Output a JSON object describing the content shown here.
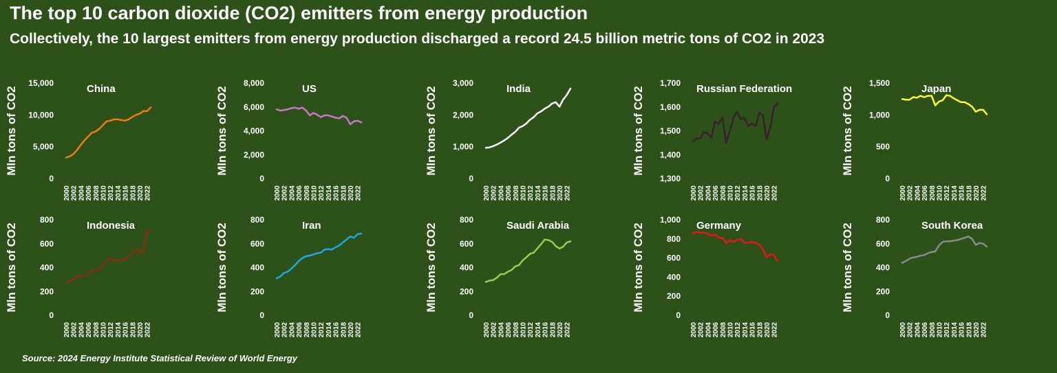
{
  "title": "The top 10 carbon dioxide (CO2) emitters from energy production",
  "subtitle": "Collectively, the 10 largest emitters from energy production discharged a record 24.5 billion metric tons of CO2 in 2023",
  "source": "Source: 2024 Energy Institute Statistical Review of World Energy",
  "chart_data": [
    {
      "type": "line",
      "title": "China",
      "color": "#f07b12",
      "ylabel": "Mln tons of CO2",
      "ylim": [
        0,
        15000
      ],
      "yticks": [
        "0",
        "5,000",
        "10,000",
        "15,000"
      ],
      "ytick_values": [
        0,
        5000,
        10000,
        15000
      ],
      "xticks": [
        "2000",
        "2002",
        "2004",
        "2006",
        "2008",
        "2010",
        "2012",
        "2014",
        "2016",
        "2018",
        "2020",
        "2022"
      ],
      "x": [
        2000,
        2001,
        2002,
        2003,
        2004,
        2005,
        2006,
        2007,
        2008,
        2009,
        2010,
        2011,
        2012,
        2013,
        2014,
        2015,
        2016,
        2017,
        2018,
        2019,
        2020,
        2021,
        2022,
        2023
      ],
      "values": [
        3300,
        3500,
        3850,
        4500,
        5300,
        6000,
        6600,
        7200,
        7400,
        7800,
        8400,
        9000,
        9100,
        9300,
        9300,
        9200,
        9100,
        9300,
        9700,
        10000,
        10200,
        10600,
        10600,
        11200
      ]
    },
    {
      "type": "line",
      "title": "US",
      "color": "#d074cc",
      "ylabel": "Mln tons of CO2",
      "ylim": [
        0,
        8000
      ],
      "yticks": [
        "0",
        "2,000",
        "4,000",
        "6,000",
        "8,000"
      ],
      "ytick_values": [
        0,
        2000,
        4000,
        6000,
        8000
      ],
      "xticks": [
        "2000",
        "2002",
        "2004",
        "2006",
        "2008",
        "2010",
        "2012",
        "2014",
        "2016",
        "2018",
        "2020",
        "2022"
      ],
      "x": [
        2000,
        2001,
        2002,
        2003,
        2004,
        2005,
        2006,
        2007,
        2008,
        2009,
        2010,
        2011,
        2012,
        2013,
        2014,
        2015,
        2016,
        2017,
        2018,
        2019,
        2020,
        2021,
        2022,
        2023
      ],
      "values": [
        5800,
        5700,
        5750,
        5800,
        5900,
        5950,
        5850,
        5950,
        5700,
        5300,
        5500,
        5350,
        5150,
        5300,
        5300,
        5200,
        5100,
        5050,
        5250,
        5100,
        4550,
        4800,
        4850,
        4700
      ]
    },
    {
      "type": "line",
      "title": "India",
      "color": "#ffffff",
      "ylabel": "Mln tons of CO2",
      "ylim": [
        0,
        3000
      ],
      "yticks": [
        "0",
        "1,000",
        "2,000",
        "3,000"
      ],
      "ytick_values": [
        0,
        1000,
        2000,
        3000
      ],
      "xticks": [
        "2000",
        "2002",
        "2004",
        "2006",
        "2008",
        "2010",
        "2012",
        "2014",
        "2016",
        "2018",
        "2020",
        "2022"
      ],
      "x": [
        2000,
        2001,
        2002,
        2003,
        2004,
        2005,
        2006,
        2007,
        2008,
        2009,
        2010,
        2011,
        2012,
        2013,
        2014,
        2015,
        2016,
        2017,
        2018,
        2019,
        2020,
        2021,
        2022,
        2023
      ],
      "values": [
        970,
        980,
        1020,
        1070,
        1130,
        1200,
        1280,
        1380,
        1470,
        1600,
        1650,
        1730,
        1850,
        1930,
        2050,
        2110,
        2200,
        2260,
        2360,
        2400,
        2260,
        2480,
        2630,
        2830
      ]
    },
    {
      "type": "line",
      "title": "Russian Federation",
      "color": "#3b1f2e",
      "ylabel": "Mln tons of CO2",
      "ylim": [
        1300,
        1700
      ],
      "yticks": [
        "1,300",
        "1,400",
        "1,500",
        "1,600",
        "1,700"
      ],
      "ytick_values": [
        1300,
        1400,
        1500,
        1600,
        1700
      ],
      "xticks": [
        "2000",
        "2002",
        "2004",
        "2006",
        "2008",
        "2010",
        "2012",
        "2014",
        "2016",
        "2018",
        "2020",
        "2022"
      ],
      "x": [
        2000,
        2001,
        2002,
        2003,
        2004,
        2005,
        2006,
        2007,
        2008,
        2009,
        2010,
        2011,
        2012,
        2013,
        2014,
        2015,
        2016,
        2017,
        2018,
        2019,
        2020,
        2021,
        2022,
        2023
      ],
      "values": [
        1455,
        1468,
        1468,
        1495,
        1490,
        1470,
        1540,
        1530,
        1555,
        1450,
        1500,
        1555,
        1580,
        1550,
        1555,
        1520,
        1530,
        1520,
        1575,
        1565,
        1465,
        1515,
        1600,
        1615
      ]
    },
    {
      "type": "line",
      "title": "Japan",
      "color": "#ffff1a",
      "ylabel": "Mln tons of CO2",
      "ylim": [
        0,
        1500
      ],
      "yticks": [
        "0",
        "500",
        "1,000",
        "1,500"
      ],
      "ytick_values": [
        0,
        500,
        1000,
        1500
      ],
      "xticks": [
        "2000",
        "2002",
        "2004",
        "2006",
        "2008",
        "2010",
        "2012",
        "2014",
        "2016",
        "2018",
        "2020",
        "2022"
      ],
      "x": [
        2000,
        2001,
        2002,
        2003,
        2004,
        2005,
        2006,
        2007,
        2008,
        2009,
        2010,
        2011,
        2012,
        2013,
        2014,
        2015,
        2016,
        2017,
        2018,
        2019,
        2020,
        2021,
        2022,
        2023
      ],
      "values": [
        1250,
        1240,
        1240,
        1280,
        1270,
        1300,
        1280,
        1300,
        1300,
        1150,
        1210,
        1230,
        1310,
        1300,
        1260,
        1230,
        1200,
        1200,
        1170,
        1130,
        1050,
        1080,
        1080,
        1010
      ]
    },
    {
      "type": "line",
      "title": "Indonesia",
      "color": "#8b2c12",
      "ylabel": "Mln tons of CO2",
      "ylim": [
        0,
        800
      ],
      "yticks": [
        "0",
        "200",
        "400",
        "600",
        "800"
      ],
      "ytick_values": [
        0,
        200,
        400,
        600,
        800
      ],
      "xticks": [
        "2000",
        "2002",
        "2004",
        "2006",
        "2008",
        "2010",
        "2012",
        "2014",
        "2016",
        "2018",
        "2020",
        "2022"
      ],
      "x": [
        2000,
        2001,
        2002,
        2003,
        2004,
        2005,
        2006,
        2007,
        2008,
        2009,
        2010,
        2011,
        2012,
        2013,
        2014,
        2015,
        2016,
        2017,
        2018,
        2019,
        2020,
        2021,
        2022,
        2023
      ],
      "values": [
        265,
        285,
        300,
        330,
        325,
        330,
        345,
        370,
        380,
        385,
        420,
        455,
        480,
        450,
        460,
        465,
        470,
        490,
        530,
        565,
        520,
        530,
        710,
        705
      ]
    },
    {
      "type": "line",
      "title": "Iran",
      "color": "#1ea9e0",
      "ylabel": "Mln tons of CO2",
      "ylim": [
        0,
        800
      ],
      "yticks": [
        "0",
        "200",
        "400",
        "600",
        "800"
      ],
      "ytick_values": [
        0,
        200,
        400,
        600,
        800
      ],
      "xticks": [
        "2000",
        "2002",
        "2004",
        "2006",
        "2008",
        "2010",
        "2012",
        "2014",
        "2016",
        "2018",
        "2020",
        "2022"
      ],
      "x": [
        2000,
        2001,
        2002,
        2003,
        2004,
        2005,
        2006,
        2007,
        2008,
        2009,
        2010,
        2011,
        2012,
        2013,
        2014,
        2015,
        2016,
        2017,
        2018,
        2019,
        2020,
        2021,
        2022,
        2023
      ],
      "values": [
        310,
        325,
        355,
        365,
        390,
        420,
        455,
        480,
        495,
        500,
        510,
        520,
        525,
        550,
        555,
        550,
        570,
        585,
        610,
        635,
        660,
        650,
        680,
        685
      ]
    },
    {
      "type": "line",
      "title": "Saudi Arabia",
      "color": "#92d050",
      "ylabel": "Mln tons of CO2",
      "ylim": [
        0,
        800
      ],
      "yticks": [
        "0",
        "200",
        "400",
        "600",
        "800"
      ],
      "ytick_values": [
        0,
        200,
        400,
        600,
        800
      ],
      "xticks": [
        "2000",
        "2002",
        "2004",
        "2006",
        "2008",
        "2010",
        "2012",
        "2014",
        "2016",
        "2018",
        "2020",
        "2022"
      ],
      "x": [
        2000,
        2001,
        2002,
        2003,
        2004,
        2005,
        2006,
        2007,
        2008,
        2009,
        2010,
        2011,
        2012,
        2013,
        2014,
        2015,
        2016,
        2017,
        2018,
        2019,
        2020,
        2021,
        2022,
        2023
      ],
      "values": [
        280,
        290,
        295,
        315,
        345,
        345,
        365,
        380,
        410,
        420,
        460,
        485,
        515,
        525,
        560,
        595,
        635,
        630,
        615,
        580,
        560,
        575,
        610,
        620
      ]
    },
    {
      "type": "line",
      "title": "Germany",
      "color": "#e8151b",
      "ylabel": "Mln tons of CO2",
      "ylim": [
        0,
        1000
      ],
      "yticks": [
        "0",
        "200",
        "400",
        "600",
        "800",
        "1,000"
      ],
      "ytick_values": [
        0,
        200,
        400,
        600,
        800,
        1000
      ],
      "xticks": [
        "2000",
        "2002",
        "2004",
        "2006",
        "2008",
        "2010",
        "2012",
        "2014",
        "2016",
        "2018",
        "2020",
        "2022"
      ],
      "x": [
        2000,
        2001,
        2002,
        2003,
        2004,
        2005,
        2006,
        2007,
        2008,
        2009,
        2010,
        2011,
        2012,
        2013,
        2014,
        2015,
        2016,
        2017,
        2018,
        2019,
        2020,
        2021,
        2022,
        2023
      ],
      "values": [
        860,
        875,
        865,
        865,
        855,
        835,
        845,
        815,
        810,
        760,
        785,
        770,
        790,
        800,
        760,
        760,
        770,
        760,
        740,
        690,
        610,
        640,
        630,
        570
      ]
    },
    {
      "type": "line",
      "title": "South Korea",
      "color": "#8c8c8c",
      "ylabel": "Mln tons of CO2",
      "ylim": [
        0,
        800
      ],
      "yticks": [
        "0",
        "200",
        "400",
        "600",
        "800"
      ],
      "ytick_values": [
        0,
        200,
        400,
        600,
        800
      ],
      "xticks": [
        "2000",
        "2002",
        "2004",
        "2006",
        "2008",
        "2010",
        "2012",
        "2014",
        "2016",
        "2018",
        "2020",
        "2022"
      ],
      "x": [
        2000,
        2001,
        2002,
        2003,
        2004,
        2005,
        2006,
        2007,
        2008,
        2009,
        2010,
        2011,
        2012,
        2013,
        2014,
        2015,
        2016,
        2017,
        2018,
        2019,
        2020,
        2021,
        2022,
        2023
      ],
      "values": [
        440,
        455,
        475,
        485,
        490,
        500,
        505,
        520,
        530,
        535,
        585,
        615,
        620,
        620,
        625,
        630,
        640,
        650,
        660,
        640,
        590,
        605,
        600,
        575
      ]
    }
  ]
}
